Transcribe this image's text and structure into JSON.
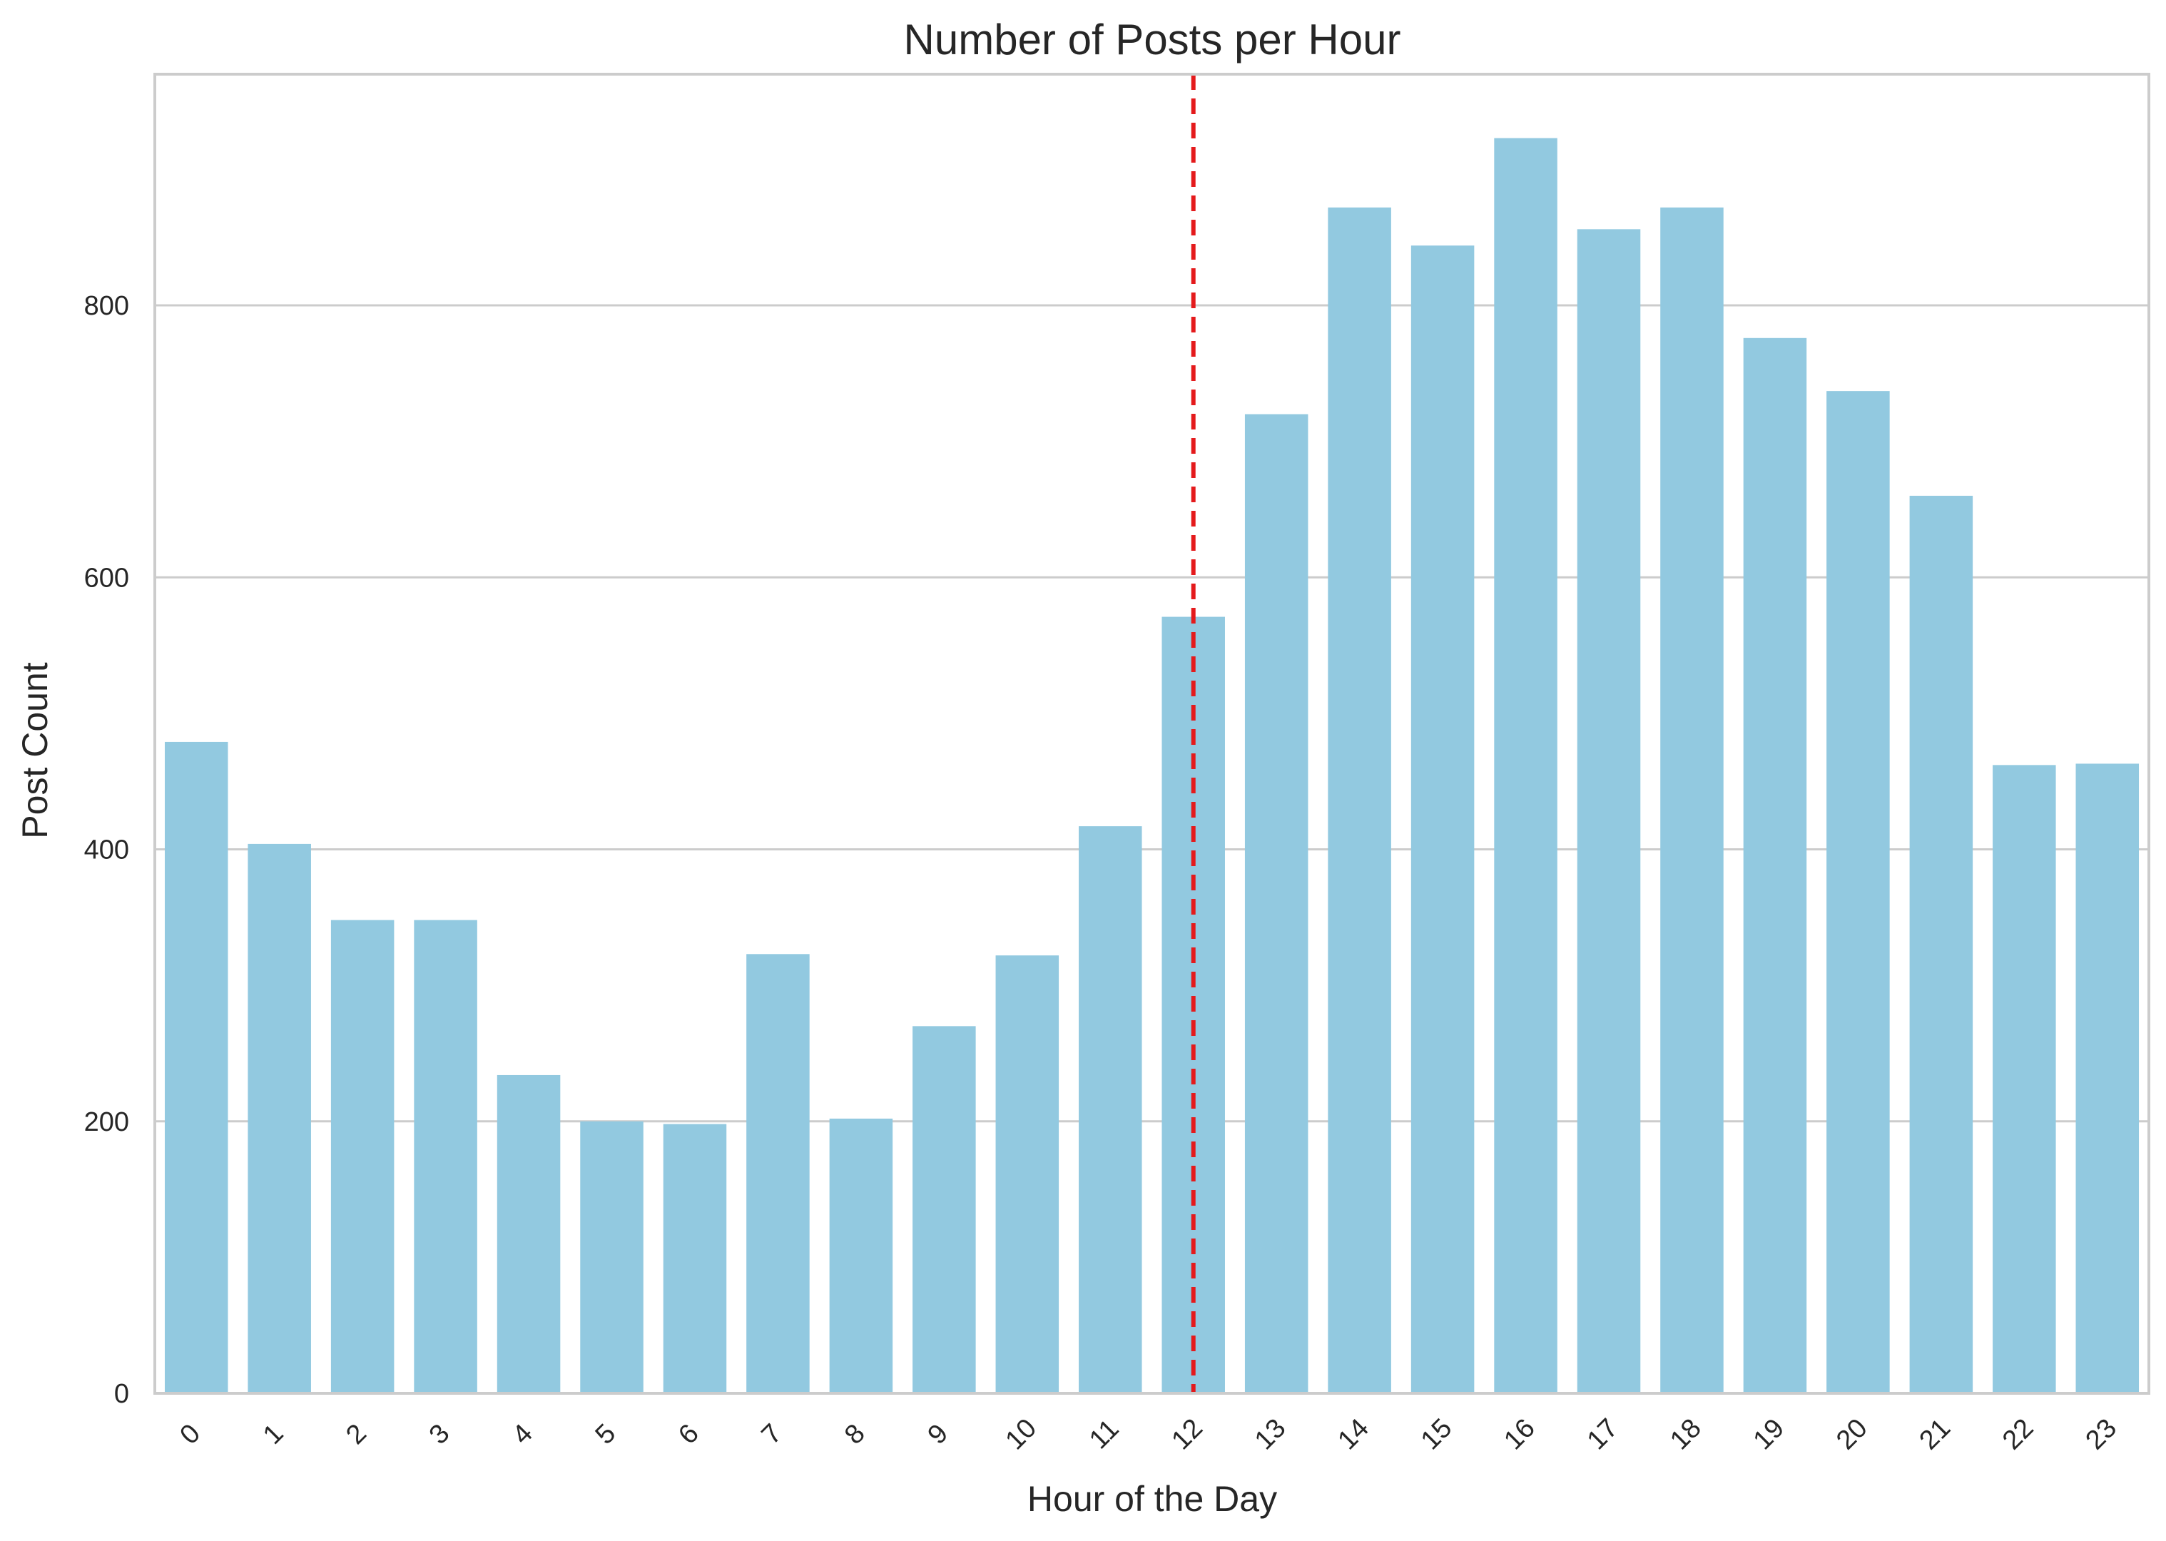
{
  "chart_data": {
    "type": "bar",
    "title": "Number of Posts per Hour",
    "xlabel": "Hour of the Day",
    "ylabel": "Post Count",
    "categories": [
      "0",
      "1",
      "2",
      "3",
      "4",
      "5",
      "6",
      "7",
      "8",
      "9",
      "10",
      "11",
      "12",
      "13",
      "14",
      "15",
      "16",
      "17",
      "18",
      "19",
      "20",
      "21",
      "22",
      "23"
    ],
    "values": [
      479,
      404,
      348,
      348,
      234,
      200,
      198,
      323,
      202,
      270,
      322,
      417,
      571,
      720,
      872,
      844,
      923,
      856,
      872,
      776,
      737,
      660,
      462,
      463
    ],
    "ylim": [
      0,
      970
    ],
    "yticks": [
      0,
      200,
      400,
      600,
      800
    ],
    "ytick_labels": [
      "0",
      "200",
      "400",
      "600",
      "800"
    ],
    "grid": "horizontal",
    "reference_line": {
      "category": "12",
      "style": "dashed",
      "color": "#e41a1c"
    },
    "bar_color": "#92c9e0",
    "grid_color": "#cccccc",
    "xtick_rotation": "45 degrees"
  }
}
